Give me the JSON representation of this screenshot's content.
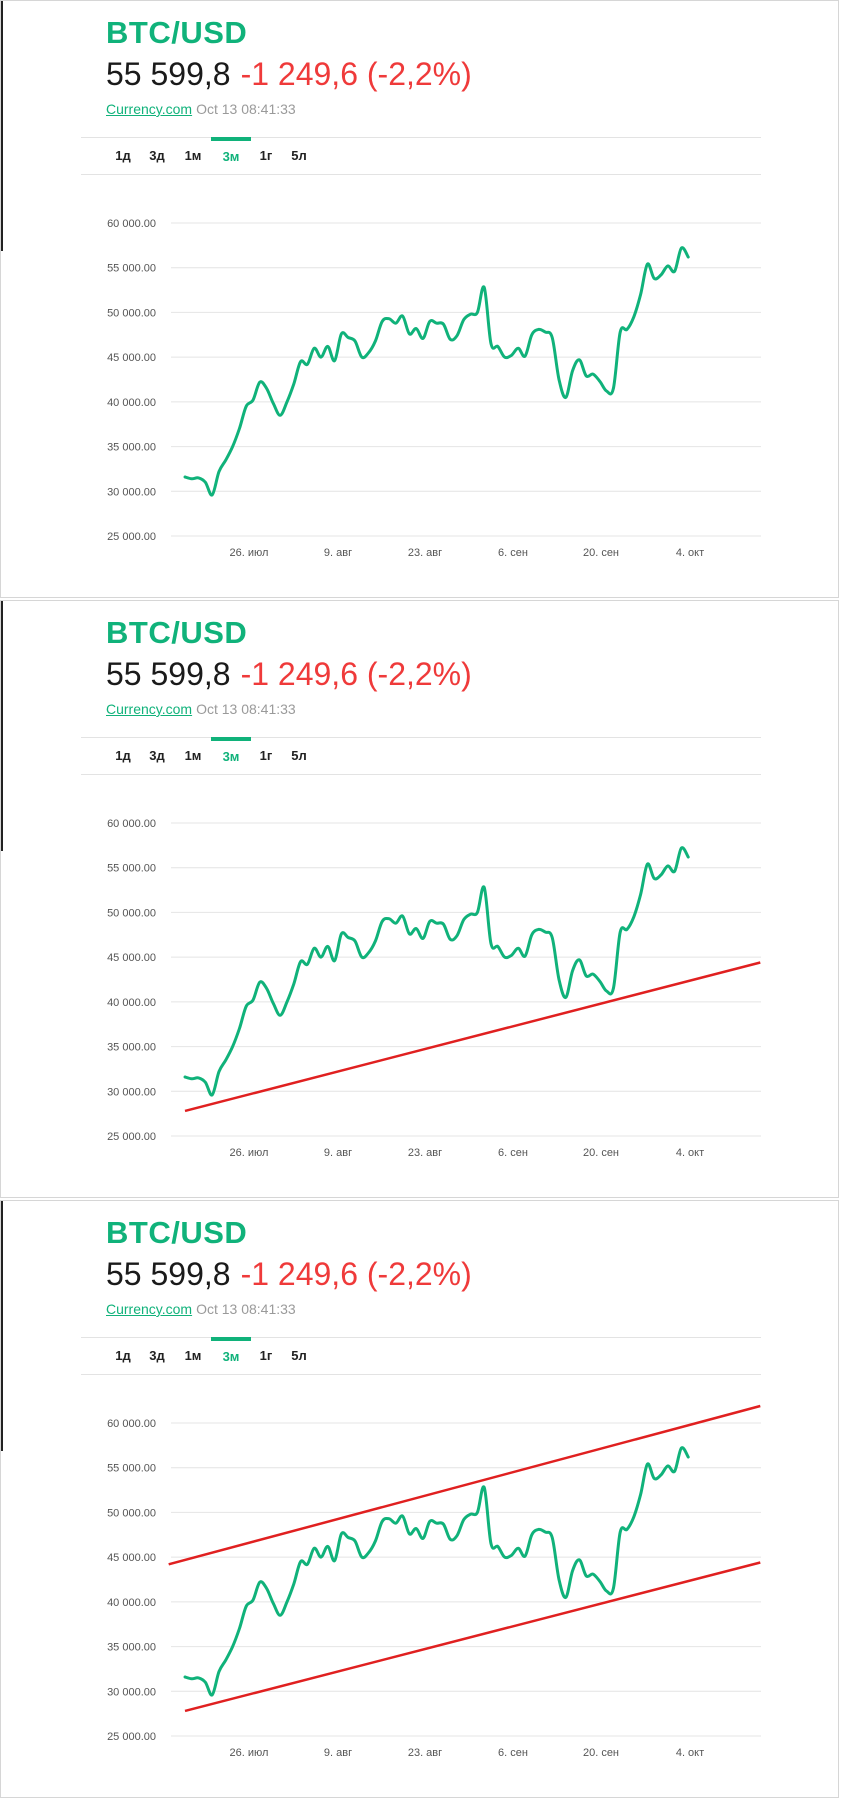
{
  "header": {
    "symbol": "BTC/USD",
    "price": "55 599,8",
    "change": "-1 249,6 (-2,2%)",
    "source": "Currency.com",
    "timestamp": "Oct 13 08:41:33"
  },
  "tabs": [
    {
      "label": "1д",
      "active": false
    },
    {
      "label": "3д",
      "active": false
    },
    {
      "label": "1м",
      "active": false
    },
    {
      "label": "3м",
      "active": true
    },
    {
      "label": "1г",
      "active": false
    },
    {
      "label": "5л",
      "active": false
    }
  ],
  "colors": {
    "accent": "#10b27a",
    "negative": "#ef3a3a",
    "trendline": "#e02020"
  },
  "chart_data": {
    "type": "line",
    "series": [
      {
        "color": "#10b27a",
        "values": [
          31600,
          31400,
          31500,
          31000,
          29600,
          32200,
          33500,
          35000,
          37000,
          39500,
          40200,
          42200,
          41500,
          39800,
          38500,
          40000,
          42000,
          44500,
          44200,
          46000,
          45000,
          46200,
          44600,
          47600,
          47200,
          46800,
          45000,
          45500,
          46800,
          49000,
          49300,
          48800,
          49600,
          47600,
          48200,
          47100,
          49000,
          48800,
          48700,
          47000,
          47400,
          49200,
          49800,
          50000,
          52800,
          46500,
          46200,
          45000,
          45200,
          46000,
          45100,
          47500,
          48100,
          47800,
          47200,
          42500,
          40500,
          43500,
          44700,
          42900,
          43100,
          42300,
          41200,
          41500,
          47800,
          48100,
          49500,
          52000,
          55400,
          53800,
          54200,
          55200,
          54600,
          57200,
          56200
        ]
      }
    ],
    "yticks": [
      "60 000.00",
      "55 000.00",
      "50 000.00",
      "45 000.00",
      "40 000.00",
      "35 000.00",
      "30 000.00",
      "25 000.00"
    ],
    "ylim": [
      25000,
      60000
    ],
    "xticks": [
      "26. июл",
      "9. авг",
      "23. авг",
      "6. сен",
      "20. сен",
      "4. окт"
    ],
    "grid": true,
    "legend": "none"
  },
  "annotations": {
    "panel2": [
      {
        "from": [
          0,
          27800
        ],
        "to": [
          84.6,
          44400
        ]
      }
    ],
    "panel3": [
      {
        "from": [
          -2.4,
          44200
        ],
        "to": [
          84.6,
          61900
        ]
      },
      {
        "from": [
          0,
          27800
        ],
        "to": [
          84.6,
          44400
        ]
      }
    ]
  }
}
